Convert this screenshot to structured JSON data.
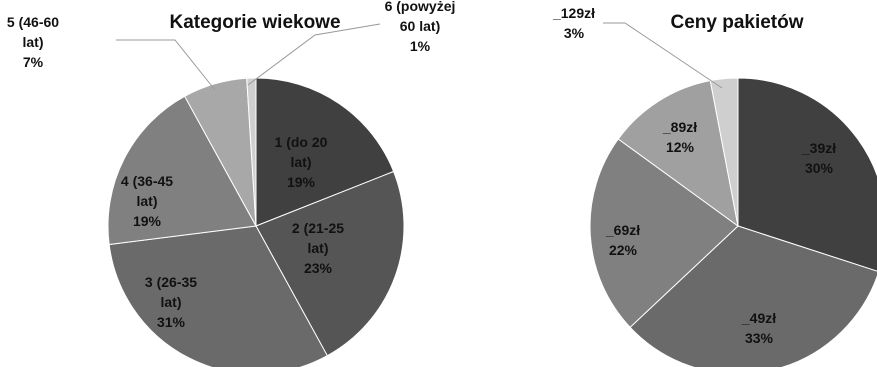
{
  "chart_data": [
    {
      "type": "pie",
      "title": "Kategorie wiekowe",
      "categories": [
        "1 (do 20 lat)",
        "2 (21-25 lat)",
        "3 (26-35 lat)",
        "4 (36-45 lat)",
        "5 (46-60 lat)",
        "6 (powyżej 60 lat)"
      ],
      "values": [
        19,
        23,
        31,
        19,
        7,
        1
      ],
      "colors": [
        "#404040",
        "#555555",
        "#6a6a6a",
        "#808080",
        "#a8a8a8",
        "#cfcfcf"
      ],
      "labels": [
        [
          "1 (do 20",
          "lat)",
          "19%"
        ],
        [
          "2 (21-25",
          "lat)",
          "23%"
        ],
        [
          "3 (26-35",
          "lat)",
          "31%"
        ],
        [
          "4 (36-45",
          "lat)",
          "19%"
        ],
        [
          "5 (46-60",
          "lat)",
          "7%"
        ],
        [
          "6 (powyżej",
          "60 lat)",
          "1%"
        ]
      ]
    },
    {
      "type": "pie",
      "title": "Ceny pakietów",
      "categories": [
        "_39zł",
        "_49zł",
        "_69zł",
        "_89zł",
        "_129zł"
      ],
      "values": [
        30,
        33,
        22,
        12,
        3
      ],
      "colors": [
        "#404040",
        "#6a6a6a",
        "#808080",
        "#a0a0a0",
        "#cfcfcf"
      ],
      "labels": [
        [
          "_39zł",
          "30%"
        ],
        [
          "_49zł",
          "33%"
        ],
        [
          "_69zł",
          "22%"
        ],
        [
          "_89zł",
          "12%"
        ],
        [
          "_129zł",
          "3%"
        ]
      ]
    }
  ]
}
